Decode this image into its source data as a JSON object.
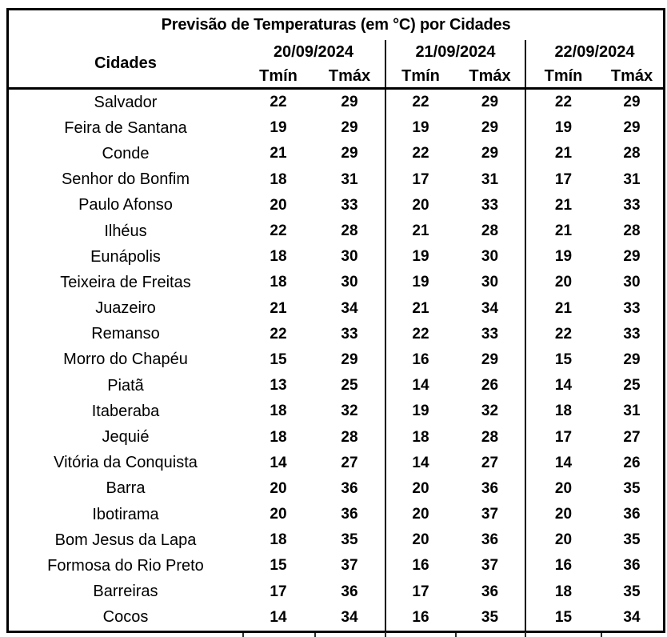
{
  "title": "Previsão de Temperaturas (em °C) por Cidades",
  "header": {
    "cities_label": "Cidades",
    "dates": [
      "20/09/2024",
      "21/09/2024",
      "22/09/2024"
    ],
    "sub_labels": [
      "Tmín",
      "Tmáx"
    ]
  },
  "rows": [
    {
      "city": "Salvador",
      "temps": [
        22,
        29,
        22,
        29,
        22,
        29
      ]
    },
    {
      "city": "Feira de Santana",
      "temps": [
        19,
        29,
        19,
        29,
        19,
        29
      ]
    },
    {
      "city": "Conde",
      "temps": [
        21,
        29,
        22,
        29,
        21,
        28
      ]
    },
    {
      "city": "Senhor do Bonfim",
      "temps": [
        18,
        31,
        17,
        31,
        17,
        31
      ]
    },
    {
      "city": "Paulo Afonso",
      "temps": [
        20,
        33,
        20,
        33,
        21,
        33
      ]
    },
    {
      "city": "Ilhéus",
      "temps": [
        22,
        28,
        21,
        28,
        21,
        28
      ]
    },
    {
      "city": "Eunápolis",
      "temps": [
        18,
        30,
        19,
        30,
        19,
        29
      ]
    },
    {
      "city": "Teixeira de Freitas",
      "temps": [
        18,
        30,
        19,
        30,
        20,
        30
      ]
    },
    {
      "city": "Juazeiro",
      "temps": [
        21,
        34,
        21,
        34,
        21,
        33
      ]
    },
    {
      "city": "Remanso",
      "temps": [
        22,
        33,
        22,
        33,
        22,
        33
      ]
    },
    {
      "city": "Morro do Chapéu",
      "temps": [
        15,
        29,
        16,
        29,
        15,
        29
      ]
    },
    {
      "city": "Piatã",
      "temps": [
        13,
        25,
        14,
        26,
        14,
        25
      ]
    },
    {
      "city": "Itaberaba",
      "temps": [
        18,
        32,
        19,
        32,
        18,
        31
      ]
    },
    {
      "city": "Jequié",
      "temps": [
        18,
        28,
        18,
        28,
        17,
        27
      ]
    },
    {
      "city": "Vitória da Conquista",
      "temps": [
        14,
        27,
        14,
        27,
        14,
        26
      ]
    },
    {
      "city": "Barra",
      "temps": [
        20,
        36,
        20,
        36,
        20,
        35
      ]
    },
    {
      "city": "Ibotirama",
      "temps": [
        20,
        36,
        20,
        37,
        20,
        36
      ]
    },
    {
      "city": "Bom Jesus da Lapa",
      "temps": [
        18,
        35,
        20,
        36,
        20,
        35
      ]
    },
    {
      "city": "Formosa do Rio Preto",
      "temps": [
        15,
        37,
        16,
        37,
        16,
        36
      ]
    },
    {
      "city": "Barreiras",
      "temps": [
        17,
        36,
        17,
        36,
        18,
        35
      ]
    },
    {
      "city": "Cocos",
      "temps": [
        14,
        34,
        16,
        35,
        15,
        34
      ]
    }
  ],
  "colors": {
    "border": "#000000",
    "text": "#000000",
    "background": "#ffffff"
  }
}
